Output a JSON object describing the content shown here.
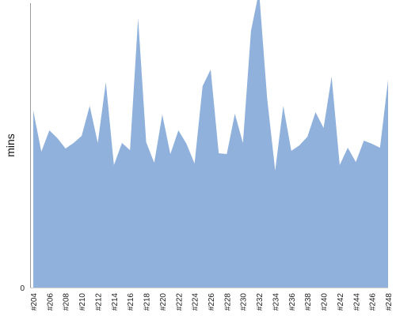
{
  "chart_data": {
    "type": "area",
    "title": "",
    "xlabel": "",
    "ylabel": "mins",
    "ylim": [
      0,
      360
    ],
    "yticks": [
      0
    ],
    "color": "#8fb1db",
    "grid": false,
    "x": [
      "#204",
      "#205",
      "#206",
      "#207",
      "#208",
      "#209",
      "#210",
      "#211",
      "#212",
      "#213",
      "#214",
      "#215",
      "#216",
      "#217",
      "#218",
      "#219",
      "#220",
      "#221",
      "#222",
      "#223",
      "#224",
      "#225",
      "#226",
      "#227",
      "#228",
      "#229",
      "#230",
      "#231",
      "#232",
      "#233",
      "#234",
      "#235",
      "#236",
      "#237",
      "#238",
      "#239",
      "#240",
      "#241",
      "#242",
      "#243",
      "#244",
      "#245",
      "#246",
      "#247",
      "#248"
    ],
    "x_tick_labels": [
      "#204",
      "#206",
      "#208",
      "#210",
      "#212",
      "#214",
      "#216",
      "#218",
      "#220",
      "#222",
      "#224",
      "#226",
      "#228",
      "#230",
      "#232",
      "#234",
      "#236",
      "#238",
      "#240",
      "#242",
      "#244",
      "#246",
      "#248"
    ],
    "values": [
      224,
      172,
      199,
      189,
      176,
      183,
      192,
      230,
      183,
      260,
      155,
      183,
      174,
      341,
      184,
      158,
      219,
      169,
      199,
      182,
      157,
      255,
      276,
      170,
      169,
      220,
      183,
      325,
      375,
      240,
      148,
      230,
      173,
      180,
      191,
      222,
      202,
      267,
      155,
      177,
      159,
      186,
      182,
      177,
      263
    ]
  }
}
